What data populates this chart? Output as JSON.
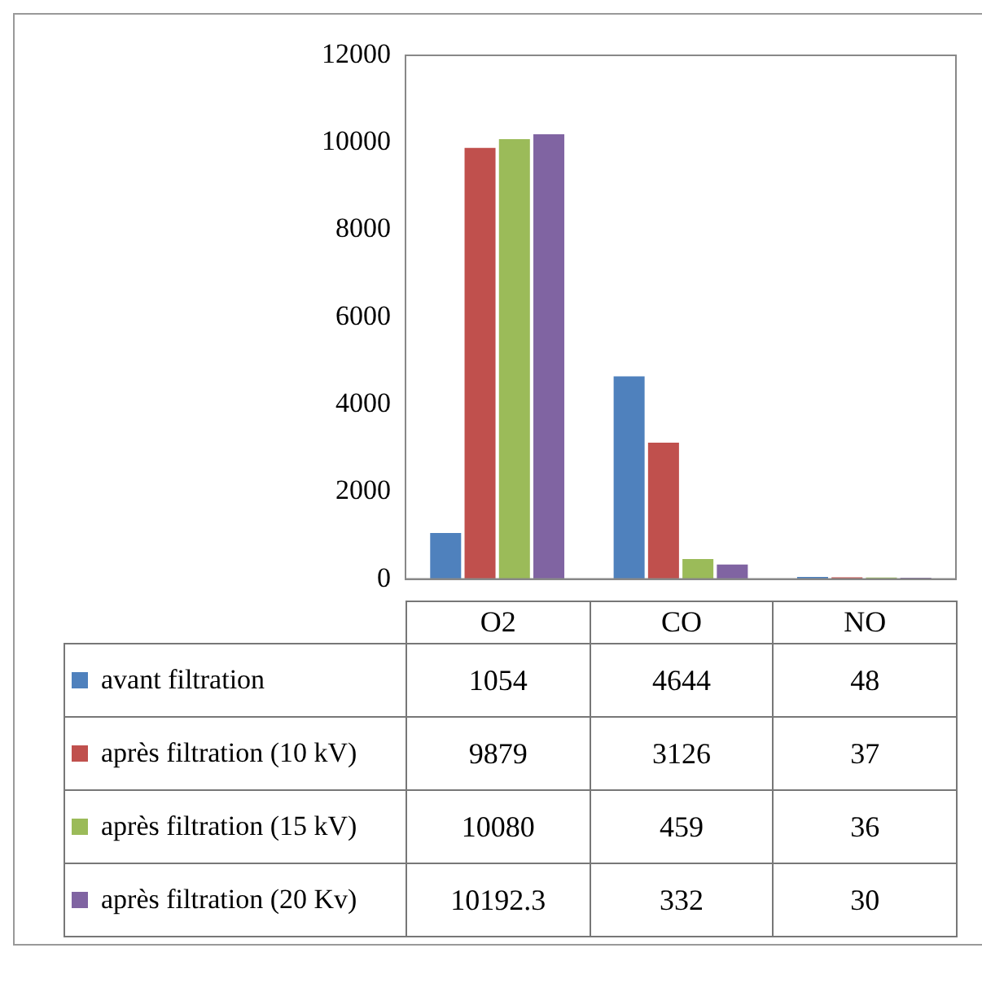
{
  "chart_data": {
    "type": "bar",
    "categories": [
      "O2",
      "CO",
      "NO"
    ],
    "series": [
      {
        "name": "avant filtration",
        "color": "#4f81bd",
        "values": [
          1054,
          4644,
          48
        ]
      },
      {
        "name": "après filtration (10 kV)",
        "color": "#c0504d",
        "values": [
          9879,
          3126,
          37
        ]
      },
      {
        "name": "après filtration (15 kV)",
        "color": "#9bbb59",
        "values": [
          10080,
          459,
          36
        ]
      },
      {
        "name": "après filtration (20 Kv)",
        "color": "#8064a2",
        "values": [
          10192.3,
          332,
          30
        ]
      }
    ],
    "ylim": [
      0,
      12000
    ],
    "yticks": [
      0,
      2000,
      4000,
      6000,
      8000,
      10000,
      12000
    ],
    "grid": false,
    "legend": "bottom",
    "data_labels": true
  }
}
